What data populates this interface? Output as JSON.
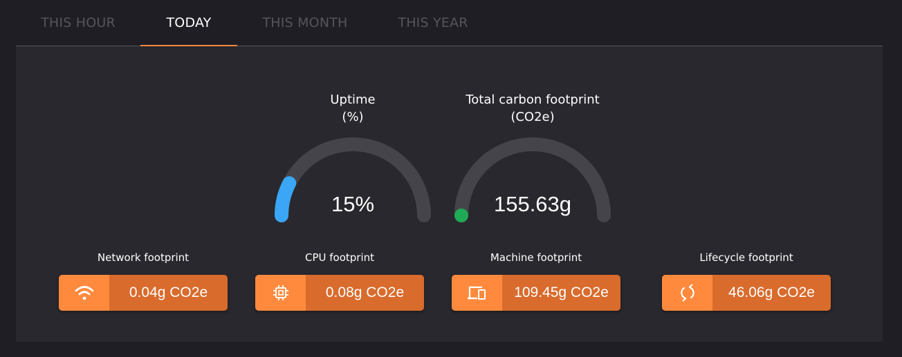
{
  "tabs": [
    {
      "label": "THIS HOUR",
      "active": false
    },
    {
      "label": "TODAY",
      "active": true
    },
    {
      "label": "THIS MONTH",
      "active": false
    },
    {
      "label": "THIS YEAR",
      "active": false
    }
  ],
  "colors": {
    "accent": "#ff8a3d",
    "accent_dark": "#d96b2c",
    "uptime_arc": "#3aa6f5",
    "carbon_dot": "#1faa55",
    "gauge_track": "#45444a"
  },
  "gauges": {
    "uptime": {
      "title": "Uptime",
      "unit": "(%)",
      "value": "15%",
      "fraction": 0.15
    },
    "carbon": {
      "title": "Total carbon footprint",
      "unit": "(CO2e)",
      "value": "155.63g",
      "fraction": 0.0
    }
  },
  "metrics": [
    {
      "label": "Network footprint",
      "value": "0.04g CO2e",
      "icon": "wifi-icon"
    },
    {
      "label": "CPU footprint",
      "value": "0.08g CO2e",
      "icon": "cpu-chip-icon"
    },
    {
      "label": "Machine footprint",
      "value": "109.45g CO2e",
      "icon": "devices-icon"
    },
    {
      "label": "Lifecycle footprint",
      "value": "46.06g CO2e",
      "icon": "recycle-arrows-icon"
    }
  ]
}
